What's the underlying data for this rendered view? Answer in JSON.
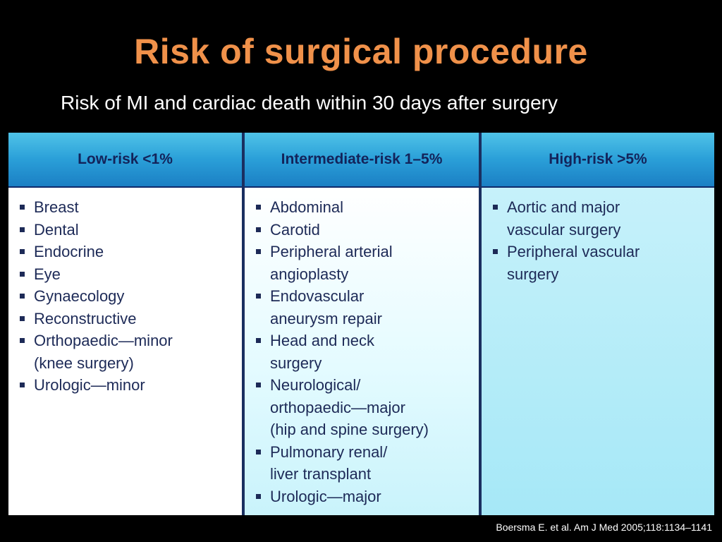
{
  "title": "Risk of surgical procedure",
  "subtitle": "Risk of MI and cardiac death within 30 days after surgery",
  "table": {
    "columns": [
      {
        "header": "Low-risk <1%",
        "items": [
          "Breast",
          "Dental",
          "Endocrine",
          "Eye",
          "Gynaecology",
          "Reconstructive",
          "Orthopaedic—minor\n(knee surgery)",
          "Urologic—minor"
        ]
      },
      {
        "header": "Intermediate-risk 1–5%",
        "items": [
          "Abdominal",
          "Carotid",
          "Peripheral arterial\nangioplasty",
          "Endovascular\naneurysm repair",
          "Head and neck\nsurgery",
          "Neurological/\northopaedic—major\n(hip and spine surgery)",
          "Pulmonary renal/\nliver transplant",
          "Urologic—major"
        ]
      },
      {
        "header": "High-risk >5%",
        "items": [
          "Aortic and major\nvascular surgery",
          "Peripheral vascular\nsurgery"
        ]
      }
    ]
  },
  "citation": "Boersma E. et al. Am J Med 2005;118:1134–1141",
  "colors": {
    "title": "#f0914a",
    "header_bg": "#2a9fd8",
    "header_text": "#13235a",
    "body_text": "#1d2a57"
  }
}
